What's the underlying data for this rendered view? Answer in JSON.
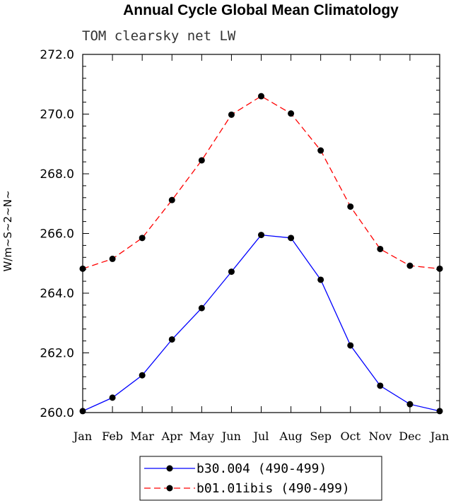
{
  "chart_data": {
    "type": "line",
    "title": "Annual Cycle Global Mean Climatology",
    "subtitle": "TOM clearsky net LW",
    "ylabel": "W/m~S~2~N~",
    "xlabel": "",
    "categories": [
      "Jan",
      "Feb",
      "Mar",
      "Apr",
      "May",
      "Jun",
      "Jul",
      "Aug",
      "Sep",
      "Oct",
      "Nov",
      "Dec",
      "Jan"
    ],
    "ylim": [
      260.0,
      272.0
    ],
    "yticks": [
      "260.0",
      "262.0",
      "264.0",
      "266.0",
      "268.0",
      "270.0",
      "272.0"
    ],
    "grid": false,
    "legend_position": "bottom",
    "series": [
      {
        "name": "b30.004 (490-499)",
        "color": "#0000ff",
        "dash": "solid",
        "values": [
          260.05,
          260.5,
          261.25,
          262.45,
          263.5,
          264.72,
          265.95,
          265.85,
          264.45,
          262.25,
          260.9,
          260.28,
          260.05
        ]
      },
      {
        "name": "b01.01ibis (490-499)",
        "color": "#ff0000",
        "dash": "dashed",
        "values": [
          264.82,
          265.15,
          265.85,
          267.12,
          268.45,
          269.98,
          270.6,
          270.02,
          268.78,
          266.9,
          265.48,
          264.92,
          264.82
        ]
      }
    ]
  }
}
